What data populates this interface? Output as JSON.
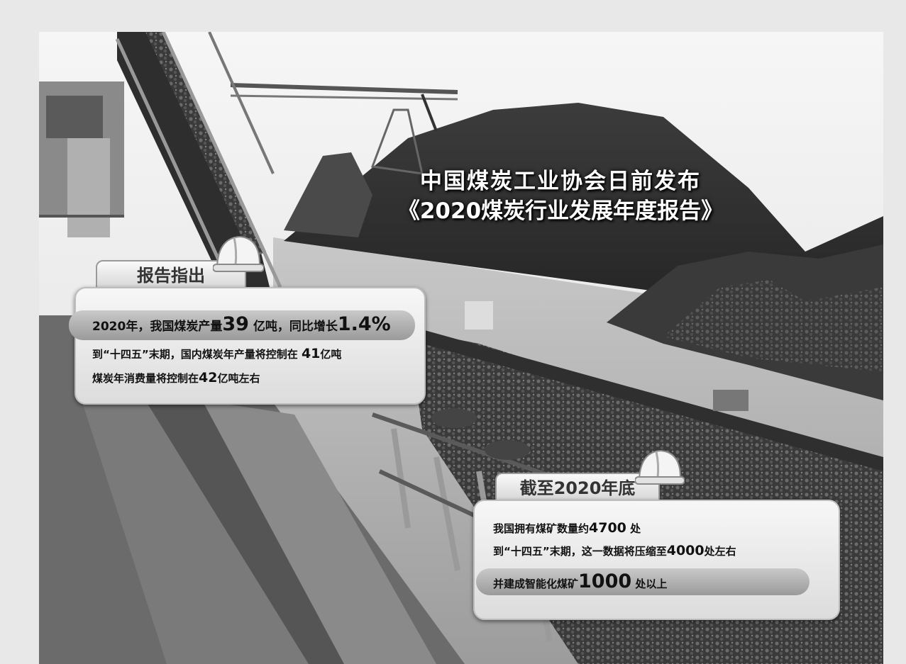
{
  "title": {
    "line1": "中国煤炭工业协会日前发布",
    "line2": "《2020煤炭行业发展年度报告》"
  },
  "report": {
    "tab": "报告指出",
    "line1": {
      "pre": "2020年，我国煤炭产量",
      "num1": "39",
      "mid": "亿吨，同比增长",
      "num2": "1.4%"
    },
    "line2": {
      "pre": "到“十四五”末期，国内煤炭年产量将控制在",
      "num": "41",
      "post": "亿吨"
    },
    "line3": {
      "pre": "煤炭年消费量将控制在",
      "num": "42",
      "post": "亿吨左右"
    }
  },
  "end2020": {
    "tab": "截至2020年底",
    "line1": {
      "pre": "我国拥有煤矿数量约",
      "num": "4700",
      "post": "处"
    },
    "line2": {
      "pre": "到“十四五”末期，这一数据将压缩至",
      "num": "4000",
      "post": "处左右"
    },
    "line3": {
      "pre": "并建成智能化煤矿",
      "num": "1000",
      "post": "处以上"
    }
  },
  "icons": [
    "hard-hat-icon"
  ]
}
